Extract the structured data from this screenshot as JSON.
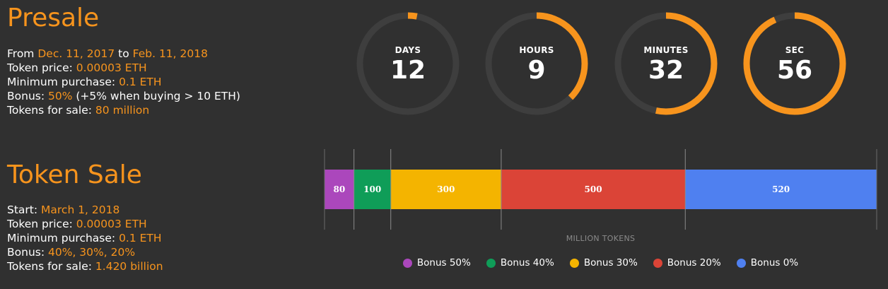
{
  "presale": {
    "title": "Presale",
    "from_label": "From ",
    "from_date": "Dec. 11, 2017",
    "to_label": " to ",
    "to_date": "Feb. 11, 2018",
    "price_label": "Token price: ",
    "price": "0.00003 ETH",
    "min_label": "Minimum purchase: ",
    "min": "0.1 ETH",
    "bonus_label": "Bonus: ",
    "bonus": "50%",
    "bonus_note": " (+5% when buying > 10 ETH)",
    "tokens_label": "Tokens for sale: ",
    "tokens": "80 million"
  },
  "countdown": {
    "ring_color": "#f7941d",
    "track_color": "#3e3e3e",
    "timers": [
      {
        "label": "DAYS",
        "value": "12",
        "fraction": 0.03
      },
      {
        "label": "HOURS",
        "value": "9",
        "fraction": 0.375
      },
      {
        "label": "MINUTES",
        "value": "32",
        "fraction": 0.533
      },
      {
        "label": "SEC",
        "value": "56",
        "fraction": 0.933
      }
    ]
  },
  "token_sale": {
    "title": "Token Sale",
    "start_label": "Start: ",
    "start": "March 1, 2018",
    "price_label": "Token price: ",
    "price": "0.00003 ETH",
    "min_label": "Minimum purchase: ",
    "min": "0.1 ETH",
    "bonus_label": "Bonus: ",
    "bonus": "40%, 30%, 20%",
    "tokens_label": "Tokens for sale: ",
    "tokens": "1.420 billion"
  },
  "chart_data": {
    "type": "bar",
    "orientation": "horizontal-stacked",
    "xlabel": "MILLION TOKENS",
    "xlim": [
      0,
      1500
    ],
    "legend_placement": "bottom",
    "series": [
      {
        "name": "Bonus 50%",
        "value": 80,
        "color": "#ab47bc"
      },
      {
        "name": "Bonus 40%",
        "value": 100,
        "color": "#0f9d58"
      },
      {
        "name": "Bonus 30%",
        "value": 300,
        "color": "#f4b400"
      },
      {
        "name": "Bonus 20%",
        "value": 500,
        "color": "#db4437"
      },
      {
        "name": "Bonus 0%",
        "value": 520,
        "color": "#4f80f0"
      }
    ]
  }
}
